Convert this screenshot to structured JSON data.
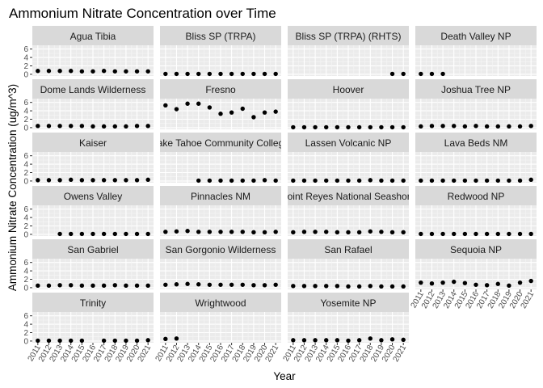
{
  "chart_data": {
    "type": "scatter",
    "title": "Ammonium Nitrate Concentration over Time",
    "xlabel": "Year",
    "ylabel": "Ammonium Nitrate Concentration (ug/m^3)",
    "ylim": [
      -0.4,
      6.9
    ],
    "yticks": [
      0,
      2,
      4,
      6
    ],
    "xlim": [
      2010.5,
      2021.5
    ],
    "xticks": [
      2011,
      2012,
      2013,
      2014,
      2015,
      2016,
      2017,
      2018,
      2019,
      2020,
      2021
    ],
    "grid": true,
    "facet_layout": "wrap 4 columns",
    "point_color": "#000000",
    "panel_background": "#ebebeb",
    "strip_background": "#d9d9d9",
    "facets": [
      {
        "name": "Agua Tibia",
        "x": [
          2011,
          2012,
          2013,
          2014,
          2015,
          2016,
          2017,
          2018,
          2019,
          2020,
          2021
        ],
        "y": [
          0.8,
          0.8,
          0.8,
          0.8,
          0.7,
          0.7,
          0.8,
          0.7,
          0.7,
          0.7,
          0.7
        ]
      },
      {
        "name": "Bliss SP (TRPA)",
        "x": [
          2011,
          2012,
          2013,
          2014,
          2015,
          2016,
          2017,
          2018,
          2019,
          2020,
          2021
        ],
        "y": [
          0.1,
          0.1,
          0.1,
          0.1,
          0.1,
          0.1,
          0.1,
          0.1,
          0.1,
          0.1,
          0.1
        ]
      },
      {
        "name": "Bliss SP (TRPA) (RHTS)",
        "x": [
          2020,
          2021
        ],
        "y": [
          0.1,
          0.1
        ]
      },
      {
        "name": "Death Valley NP",
        "x": [
          2011,
          2012,
          2013
        ],
        "y": [
          0.1,
          0.1,
          0.1
        ]
      },
      {
        "name": "Dome Lands Wilderness",
        "x": [
          2011,
          2012,
          2013,
          2014,
          2015,
          2016,
          2017,
          2018,
          2019,
          2020,
          2021
        ],
        "y": [
          0.4,
          0.4,
          0.4,
          0.4,
          0.4,
          0.3,
          0.3,
          0.3,
          0.3,
          0.4,
          0.4
        ]
      },
      {
        "name": "Fresno",
        "x": [
          2011,
          2012,
          2013,
          2014,
          2015,
          2016,
          2017,
          2018,
          2019,
          2020,
          2021
        ],
        "y": [
          5.3,
          4.4,
          5.7,
          5.7,
          4.8,
          3.3,
          3.6,
          4.5,
          2.5,
          3.6,
          3.8
        ]
      },
      {
        "name": "Hoover",
        "x": [
          2011,
          2012,
          2013,
          2014,
          2015,
          2016,
          2017,
          2018,
          2019,
          2020,
          2021
        ],
        "y": [
          0.1,
          0.1,
          0.1,
          0.1,
          0.1,
          0.1,
          0.1,
          0.1,
          0.1,
          0.1,
          0.1
        ]
      },
      {
        "name": "Joshua Tree NP",
        "x": [
          2011,
          2012,
          2013,
          2014,
          2015,
          2016,
          2017,
          2018,
          2019,
          2020,
          2021
        ],
        "y": [
          0.3,
          0.4,
          0.4,
          0.4,
          0.3,
          0.4,
          0.3,
          0.3,
          0.3,
          0.3,
          0.4
        ]
      },
      {
        "name": "Kaiser",
        "x": [
          2011,
          2012,
          2013,
          2014,
          2015,
          2016,
          2017,
          2018,
          2019,
          2020,
          2021
        ],
        "y": [
          0.2,
          0.2,
          0.2,
          0.3,
          0.2,
          0.2,
          0.2,
          0.2,
          0.2,
          0.2,
          0.3
        ]
      },
      {
        "name": "Lake Tahoe Community College",
        "x": [
          2014,
          2015,
          2016,
          2017,
          2018,
          2019,
          2020,
          2021
        ],
        "y": [
          0.1,
          0.1,
          0.1,
          0.1,
          0.1,
          0.1,
          0.2,
          0.1
        ]
      },
      {
        "name": "Lassen Volcanic NP",
        "x": [
          2011,
          2012,
          2013,
          2014,
          2015,
          2016,
          2017,
          2018,
          2019,
          2020,
          2021
        ],
        "y": [
          0.1,
          0.1,
          0.1,
          0.1,
          0.1,
          0.1,
          0.1,
          0.2,
          0.1,
          0.1,
          0.1
        ]
      },
      {
        "name": "Lava Beds NM",
        "x": [
          2011,
          2012,
          2013,
          2014,
          2015,
          2016,
          2017,
          2018,
          2019,
          2020,
          2021
        ],
        "y": [
          0.1,
          0.1,
          0.1,
          0.1,
          0.1,
          0.1,
          0.1,
          0.1,
          0.1,
          0.1,
          0.3
        ]
      },
      {
        "name": "Owens Valley",
        "x": [
          2013,
          2014,
          2015,
          2016,
          2017,
          2018,
          2019,
          2020,
          2021
        ],
        "y": [
          0.1,
          0.1,
          0.1,
          0.1,
          0.1,
          0.1,
          0.1,
          0.1,
          0.1
        ]
      },
      {
        "name": "Pinnacles NM",
        "x": [
          2011,
          2012,
          2013,
          2014,
          2015,
          2016,
          2017,
          2018,
          2019,
          2020,
          2021
        ],
        "y": [
          0.6,
          0.7,
          0.8,
          0.6,
          0.6,
          0.6,
          0.6,
          0.6,
          0.5,
          0.5,
          0.6
        ]
      },
      {
        "name": "Point Reyes National Seashore",
        "x": [
          2011,
          2012,
          2013,
          2014,
          2015,
          2016,
          2017,
          2018,
          2019,
          2020,
          2021
        ],
        "y": [
          0.5,
          0.6,
          0.6,
          0.6,
          0.5,
          0.5,
          0.5,
          0.7,
          0.6,
          0.5,
          0.5
        ]
      },
      {
        "name": "Redwood NP",
        "x": [
          2011,
          2012,
          2013,
          2014,
          2015,
          2016,
          2017,
          2018,
          2019,
          2020,
          2021
        ],
        "y": [
          0.1,
          0.1,
          0.1,
          0.1,
          0.1,
          0.1,
          0.1,
          0.1,
          0.1,
          0.1,
          0.1
        ]
      },
      {
        "name": "San Gabriel",
        "x": [
          2011,
          2012,
          2013,
          2014,
          2015,
          2016,
          2017,
          2018,
          2019,
          2020,
          2021
        ],
        "y": [
          0.5,
          0.5,
          0.6,
          0.6,
          0.5,
          0.5,
          0.5,
          0.6,
          0.5,
          0.5,
          0.5
        ]
      },
      {
        "name": "San Gorgonio Wilderness",
        "x": [
          2011,
          2012,
          2013,
          2014,
          2015,
          2016,
          2017,
          2018,
          2019,
          2020,
          2021
        ],
        "y": [
          0.7,
          0.8,
          0.9,
          0.8,
          0.7,
          0.7,
          0.7,
          0.7,
          0.6,
          0.6,
          0.7
        ]
      },
      {
        "name": "San Rafael",
        "x": [
          2011,
          2012,
          2013,
          2014,
          2015,
          2016,
          2017,
          2018,
          2019,
          2020,
          2021
        ],
        "y": [
          0.4,
          0.4,
          0.4,
          0.4,
          0.4,
          0.3,
          0.3,
          0.4,
          0.3,
          0.3,
          0.3
        ]
      },
      {
        "name": "Sequoia NP",
        "x": [
          2011,
          2012,
          2013,
          2014,
          2015,
          2016,
          2017,
          2018,
          2019,
          2020,
          2021
        ],
        "y": [
          1.2,
          1.0,
          1.2,
          1.4,
          1.1,
          0.7,
          0.6,
          0.9,
          0.5,
          1.2,
          1.6
        ]
      },
      {
        "name": "Trinity",
        "x": [
          2011,
          2012,
          2013,
          2014,
          2015,
          2017,
          2018,
          2019,
          2020,
          2021
        ],
        "y": [
          0.1,
          0.1,
          0.1,
          0.1,
          0.1,
          0.1,
          0.1,
          0.1,
          0.1,
          0.2
        ]
      },
      {
        "name": "Wrightwood",
        "x": [
          2011,
          2012
        ],
        "y": [
          0.5,
          0.6
        ]
      },
      {
        "name": "Yosemite NP",
        "x": [
          2011,
          2012,
          2013,
          2014,
          2015,
          2016,
          2017,
          2018,
          2019,
          2020,
          2021
        ],
        "y": [
          0.2,
          0.2,
          0.2,
          0.2,
          0.2,
          0.1,
          0.2,
          0.6,
          0.2,
          0.4,
          0.3
        ]
      }
    ]
  }
}
